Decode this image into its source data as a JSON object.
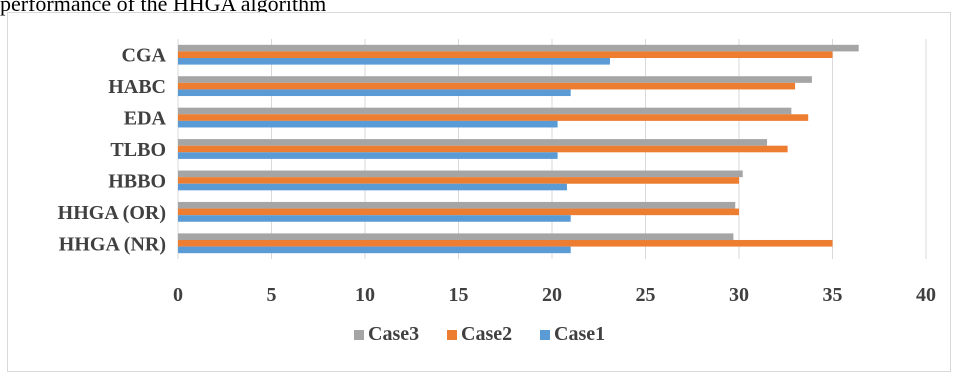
{
  "top_text": "performance of the HHGA algorithm",
  "colors": {
    "Case1": "#5b9bd5",
    "Case2": "#ed7d31",
    "Case3": "#a5a5a5"
  },
  "chart_data": {
    "type": "bar",
    "orientation": "horizontal",
    "title": "",
    "xlabel": "",
    "ylabel": "",
    "categories": [
      "HHGA (NR)",
      "HHGA (OR)",
      "HBBO",
      "TLBO",
      "EDA",
      "HABC",
      "CGA"
    ],
    "series": [
      {
        "name": "Case3",
        "values": [
          29.7,
          29.8,
          30.2,
          31.5,
          32.8,
          33.9,
          36.4
        ]
      },
      {
        "name": "Case2",
        "values": [
          35.0,
          30.0,
          30.0,
          32.6,
          33.7,
          33.0,
          35.0
        ]
      },
      {
        "name": "Case1",
        "values": [
          21.0,
          21.0,
          20.8,
          20.3,
          20.3,
          21.0,
          23.1
        ]
      }
    ],
    "xlim": [
      0,
      40
    ],
    "xticks": [
      "0",
      "5",
      "10",
      "15",
      "20",
      "25",
      "30",
      "35",
      "40"
    ],
    "grid": "vertical",
    "legend": {
      "position": "bottom",
      "entries": [
        "Case3",
        "Case2",
        "Case1"
      ]
    }
  }
}
